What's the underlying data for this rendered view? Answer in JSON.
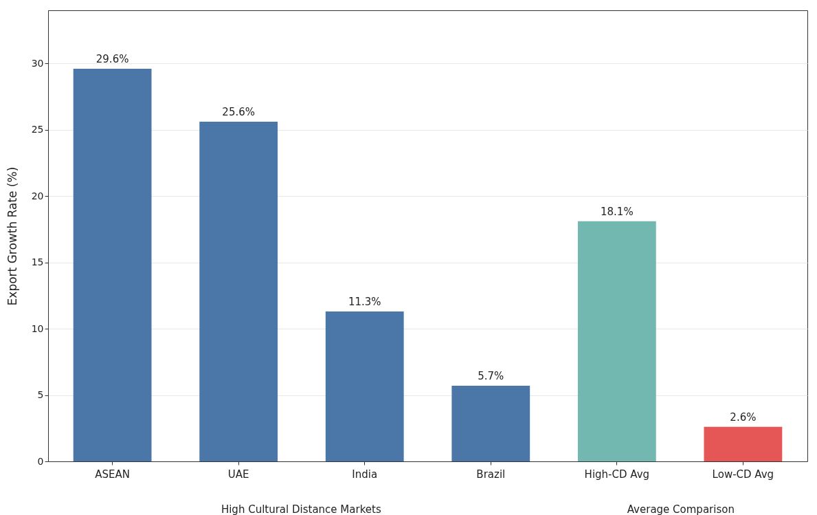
{
  "chart_data": {
    "type": "bar",
    "categories": [
      "ASEAN",
      "UAE",
      "India",
      "Brazil",
      "High-CD Avg",
      "Low-CD Avg"
    ],
    "values": [
      29.6,
      25.6,
      11.3,
      5.7,
      18.1,
      2.6
    ],
    "colors": [
      "#4a76a8",
      "#4a76a8",
      "#4a76a8",
      "#4a76a8",
      "#72b7b0",
      "#e45756"
    ],
    "value_labels": [
      "29.6%",
      "25.6%",
      "11.3%",
      "5.7%",
      "18.1%",
      "2.6%"
    ],
    "ylabel": "Export Growth Rate (%)",
    "ylim": [
      0,
      34
    ],
    "yticks": [
      0,
      5,
      10,
      15,
      20,
      25,
      30
    ],
    "grid": "y",
    "annotations": [
      "High Cultural Distance Markets",
      "Average Comparison"
    ]
  }
}
